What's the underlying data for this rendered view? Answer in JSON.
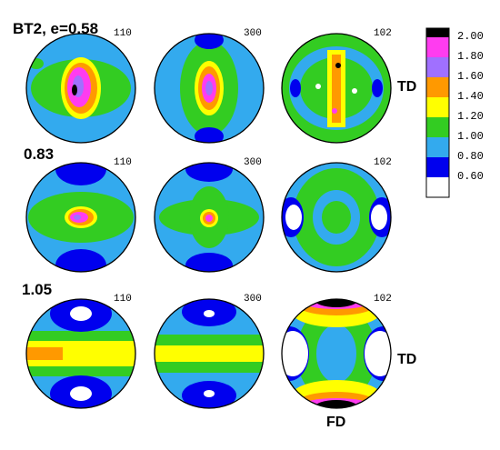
{
  "row_labels": [
    "BT2, e=0.58",
    "0.83",
    "1.05"
  ],
  "pole_labels": [
    "110",
    "300",
    "102"
  ],
  "direction_labels": {
    "td_top": "TD",
    "td_bottom": "TD",
    "fd": "FD"
  },
  "legend": {
    "ticks": [
      "2.00",
      "1.80",
      "1.60",
      "1.40",
      "1.20",
      "1.00",
      "0.80",
      "0.60"
    ],
    "colors": [
      "#000000",
      "#ff3cf0",
      "#a070ff",
      "#ff9900",
      "#ffff00",
      "#33cc22",
      "#33aaee",
      "#0000ee",
      "#ffffff"
    ]
  },
  "colors": {
    "lvl_white": "#ffffff",
    "lvl_0_8": "#0000ee",
    "lvl_1_0": "#33aaee",
    "lvl_1_2": "#33cc22",
    "lvl_1_4": "#ffff00",
    "lvl_1_6": "#ff9900",
    "lvl_1_8": "#a070ff",
    "lvl_2_0": "#ff3cf0",
    "lvl_max": "#000000"
  }
}
